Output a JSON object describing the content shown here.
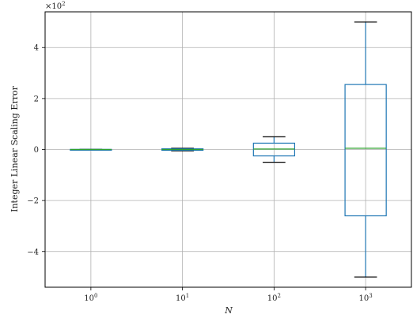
{
  "chart_data": {
    "type": "box",
    "ylabel": "Integer Linear Scaling Error",
    "xlabel": "N",
    "y_multiplier": {
      "base": "×10",
      "exp": "2"
    },
    "ylim": [
      -5.4,
      5.4
    ],
    "yticks": [
      -4,
      -2,
      0,
      2,
      4
    ],
    "ytick_labels": [
      "−4",
      "−2",
      "0",
      "2",
      "4"
    ],
    "categories": [
      {
        "base": "10",
        "exp": "0"
      },
      {
        "base": "10",
        "exp": "1"
      },
      {
        "base": "10",
        "exp": "2"
      },
      {
        "base": "10",
        "exp": "3"
      }
    ],
    "boxes": [
      {
        "whisker_low": -0.01,
        "q1": -0.005,
        "median": 0.0,
        "q3": 0.005,
        "whisker_high": 0.01
      },
      {
        "whisker_low": -0.05,
        "q1": -0.03,
        "median": 0.0,
        "q3": 0.03,
        "whisker_high": 0.05
      },
      {
        "whisker_low": -0.5,
        "q1": -0.25,
        "median": 0.02,
        "q3": 0.25,
        "whisker_high": 0.5
      },
      {
        "whisker_low": -5.0,
        "q1": -2.6,
        "median": 0.05,
        "q3": 2.55,
        "whisker_high": 5.0
      }
    ],
    "colors": {
      "box": "#1f77b4",
      "median": "#2ca02c",
      "cap": "#000000",
      "grid": "#b0b0b0"
    },
    "grid": true
  }
}
